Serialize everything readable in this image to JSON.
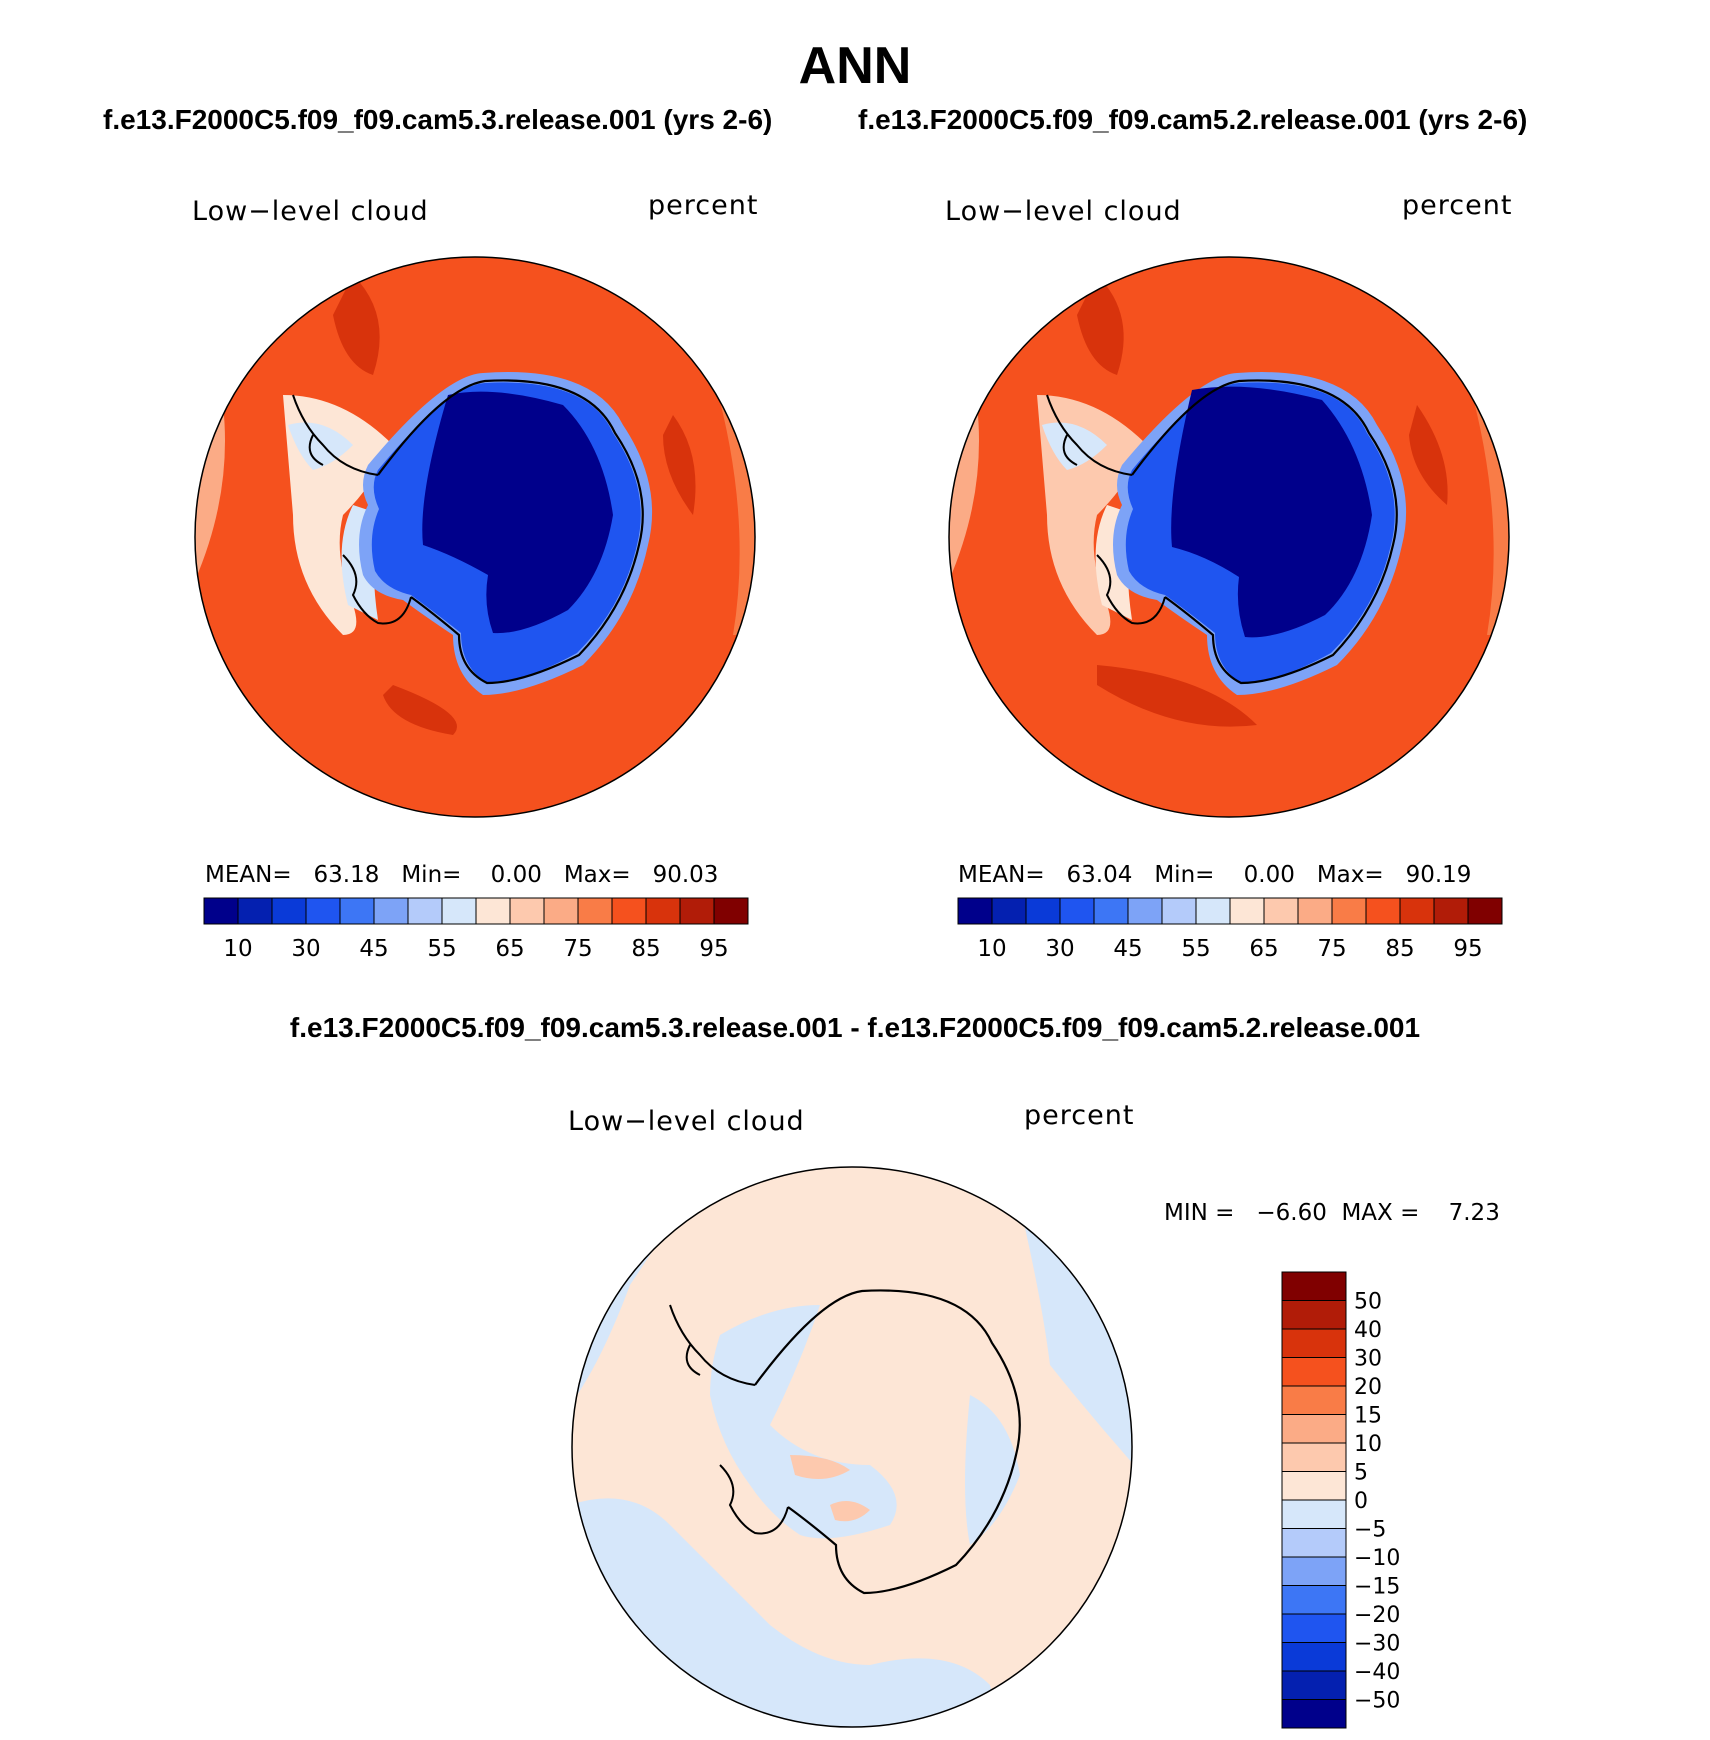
{
  "title": "ANN",
  "case_labels": {
    "left": "f.e13.F2000C5.f09_f09.cam5.3.release.001 (yrs 2-6)",
    "right": "f.e13.F2000C5.f09_f09.cam5.2.release.001 (yrs 2-6)"
  },
  "diff_title": "f.e13.F2000C5.f09_f09.cam5.3.release.001 - f.e13.F2000C5.f09_f09.cam5.2.release.001",
  "panels": [
    {
      "variable": "Low−level cloud",
      "units": "percent",
      "stats": {
        "mean_label": "MEAN=",
        "mean": "63.18",
        "min_label": "Min=",
        "min": "0.00",
        "max_label": "Max=",
        "max": "90.03"
      }
    },
    {
      "variable": "Low−level cloud",
      "units": "percent",
      "stats": {
        "mean_label": "MEAN=",
        "mean": "63.04",
        "min_label": "Min=",
        "min": "0.00",
        "max_label": "Max=",
        "max": "90.19"
      }
    },
    {
      "variable": "Low−level cloud",
      "units": "percent",
      "stats": {
        "text": "MIN =   −6.60  MAX =    7.23"
      }
    }
  ],
  "colorbar_main": {
    "colors": [
      "#00008b",
      "#0420b0",
      "#0a3ad8",
      "#1f55f0",
      "#3d76f5",
      "#7da3f7",
      "#b4cbfa",
      "#d6e7fa",
      "#fde6d6",
      "#fdc9ae",
      "#fbab86",
      "#f97c47",
      "#f5511e",
      "#d8330c",
      "#b11c08",
      "#800000"
    ],
    "tick_labels": [
      "10",
      "30",
      "45",
      "55",
      "65",
      "75",
      "85",
      "95"
    ]
  },
  "colorbar_diff": {
    "colors": [
      "#800000",
      "#b11c08",
      "#d8330c",
      "#f5511e",
      "#f97c47",
      "#fbab86",
      "#fdc9ae",
      "#fde6d6",
      "#d6e7fa",
      "#b4cbfa",
      "#7da3f7",
      "#3d76f5",
      "#1f55f0",
      "#0a3ad8",
      "#0420b0",
      "#00008b"
    ],
    "tick_labels": [
      "50",
      "40",
      "30",
      "20",
      "15",
      "10",
      "5",
      "0",
      "−5",
      "−10",
      "−15",
      "−20",
      "−30",
      "−40",
      "−50"
    ]
  }
}
